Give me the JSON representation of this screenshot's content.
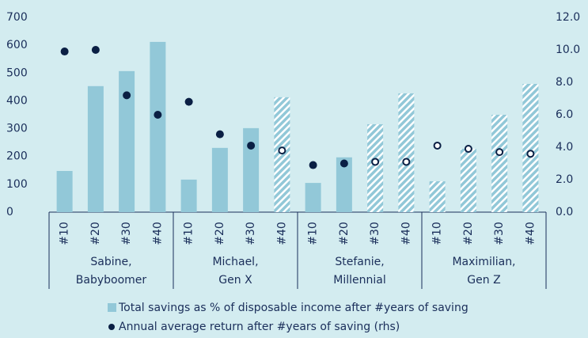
{
  "chart_data": {
    "type": "bar-dot",
    "categories": [
      "#10",
      "#20",
      "#30",
      "#40",
      "#10",
      "#20",
      "#30",
      "#40",
      "#10",
      "#20",
      "#30",
      "#40",
      "#10",
      "#20",
      "#30",
      "#40"
    ],
    "groups": [
      {
        "label": [
          "Sabine,",
          "Babyboomer"
        ],
        "size": 4
      },
      {
        "label": [
          "Michael,",
          "Gen X"
        ],
        "size": 4
      },
      {
        "label": [
          "Stefanie,",
          "Millennial"
        ],
        "size": 4
      },
      {
        "label": [
          "Maximilian,",
          "Gen Z"
        ],
        "size": 4
      }
    ],
    "series": [
      {
        "name": "Total savings as % of disposable income after #years of saving",
        "type": "bar",
        "color": "#92c8d8",
        "values": [
          148,
          453,
          507,
          612,
          117,
          231,
          302,
          413,
          105,
          197,
          316,
          427,
          111,
          228,
          350,
          461
        ],
        "hatched": [
          false,
          false,
          false,
          false,
          false,
          false,
          false,
          true,
          false,
          false,
          true,
          true,
          true,
          true,
          true,
          true
        ]
      },
      {
        "name": "Annual average return after #years of saving (rhs)",
        "type": "dot",
        "axis": "y2",
        "color": "#0a1f44",
        "values": [
          9.9,
          10.0,
          7.2,
          6.0,
          6.8,
          4.8,
          4.1,
          3.8,
          2.9,
          3.0,
          3.1,
          3.1,
          4.1,
          3.9,
          3.7,
          3.6
        ],
        "hollow": [
          false,
          false,
          false,
          false,
          false,
          false,
          false,
          true,
          false,
          false,
          true,
          true,
          true,
          true,
          true,
          true
        ]
      }
    ],
    "ylim": [
      0,
      700
    ],
    "yticks": [
      0,
      100,
      200,
      300,
      400,
      500,
      600,
      700
    ],
    "y2lim": [
      0,
      12
    ],
    "y2ticks": [
      {
        "value": 0,
        "label": "0.0"
      },
      {
        "value": 2,
        "label": "2.0"
      },
      {
        "value": 4,
        "label": "4.0"
      },
      {
        "value": 6,
        "label": "6.0"
      },
      {
        "value": 8,
        "label": "8.0"
      },
      {
        "value": 10,
        "label": "10.0"
      },
      {
        "value": 12,
        "label": "12.0"
      }
    ]
  }
}
